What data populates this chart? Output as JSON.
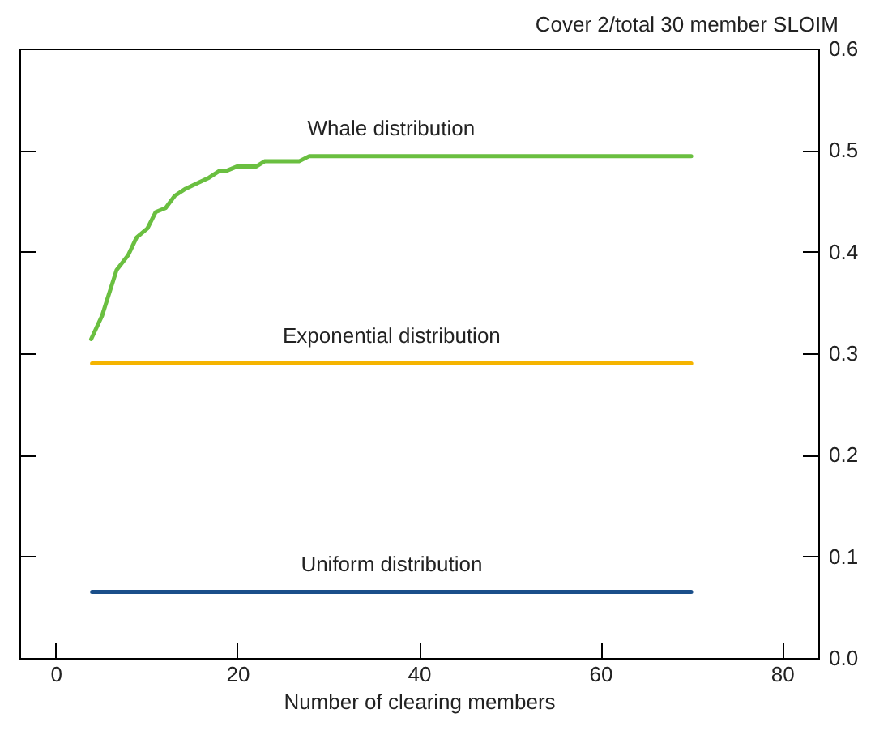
{
  "chart_data": {
    "type": "line",
    "xlabel": "Number of clearing members",
    "ylabel": "Cover 2/total 30 member SLOIM",
    "xlim": [
      -4,
      84
    ],
    "xticks": [
      0,
      20,
      40,
      60,
      80
    ],
    "ylim": [
      0,
      0.6
    ],
    "yticks": [
      {
        "value": 0,
        "label": "0.0"
      },
      0.1,
      0.2,
      0.3,
      0.4,
      0.5,
      0.6
    ],
    "grid": false,
    "legend": false,
    "marker": "none",
    "line_style": "solid",
    "series": [
      {
        "name": "Whale distribution",
        "color": "#6abf40",
        "x": [
          3.9,
          5.1,
          6.7,
          8.0,
          8.9,
          10.1,
          11.0,
          12.1,
          13.1,
          14.3,
          15.7,
          16.9,
          18.1,
          18.9,
          20.0,
          22.1,
          23.0,
          26.8,
          27.9,
          70
        ],
        "values": [
          0.314,
          0.337,
          0.382,
          0.397,
          0.414,
          0.423,
          0.439,
          0.443,
          0.455,
          0.462,
          0.468,
          0.473,
          0.48,
          0.48,
          0.484,
          0.484,
          0.489,
          0.489,
          0.494,
          0.494
        ]
      },
      {
        "name": "Exponential distribution",
        "color": "#f5b400",
        "x": [
          4,
          70
        ],
        "values": [
          0.29,
          0.29
        ]
      },
      {
        "name": "Uniform distribution",
        "color": "#1a4f8a",
        "x": [
          4,
          70
        ],
        "values": [
          0.065,
          0.065
        ]
      }
    ]
  }
}
